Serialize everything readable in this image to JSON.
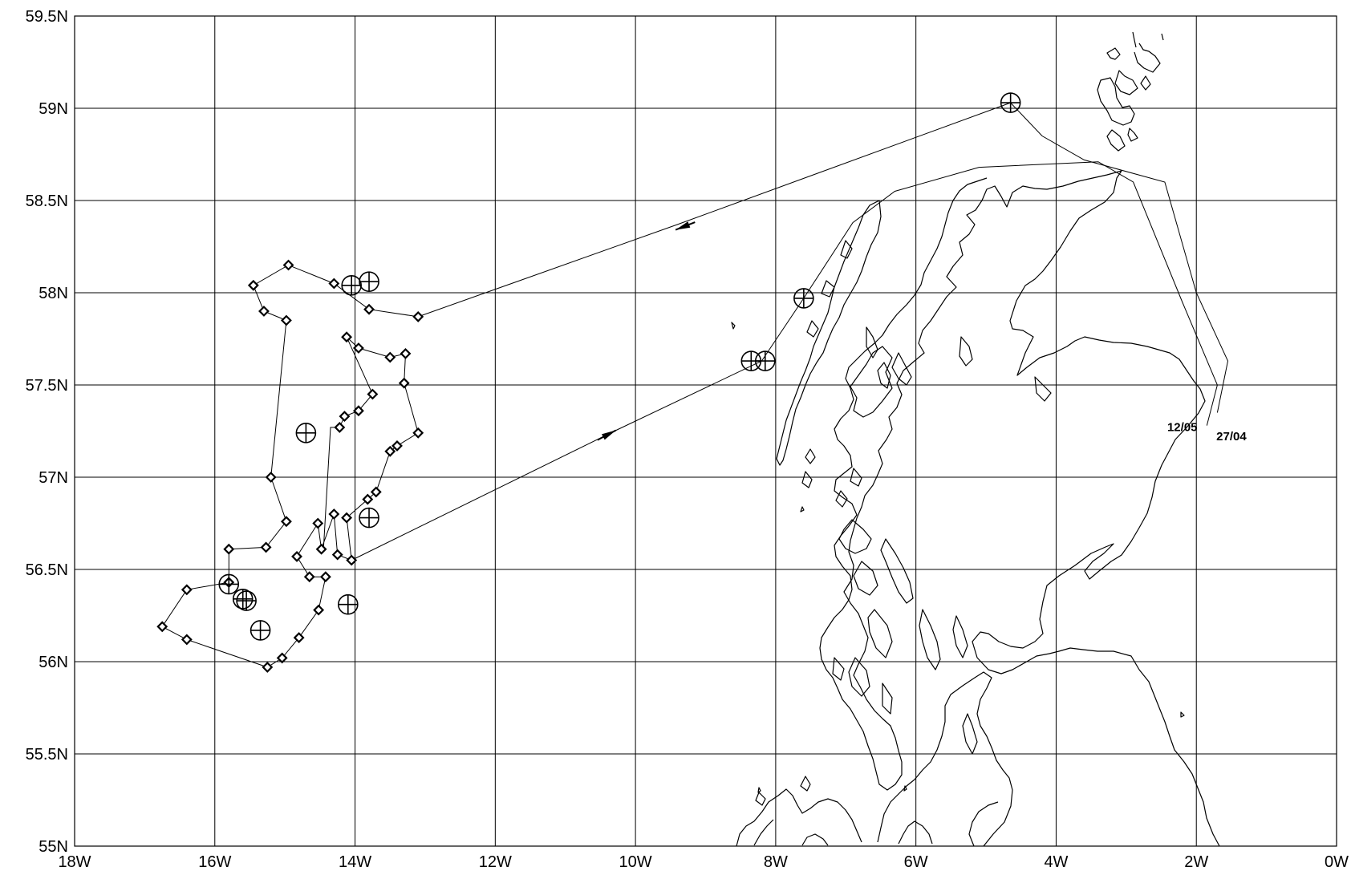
{
  "map": {
    "lon_range": [
      -18,
      0
    ],
    "lat_range": [
      55,
      59.5
    ],
    "x_tick_labels": [
      "18W",
      "16W",
      "14W",
      "12W",
      "10W",
      "8W",
      "6W",
      "4W",
      "2W",
      "0W"
    ],
    "y_tick_labels": [
      "55N",
      "55.5N",
      "56N",
      "56.5N",
      "57N",
      "57.5N",
      "58N",
      "58.5N",
      "59N",
      "59.5N"
    ],
    "annotations": [
      {
        "text": "12/05",
        "lon": -2.2,
        "lat": 57.25
      },
      {
        "text": "27/04",
        "lon": -1.5,
        "lat": 57.2
      }
    ],
    "survey_track": [
      [
        -13.1,
        57.87
      ],
      [
        -13.8,
        57.91
      ],
      [
        -14.3,
        58.05
      ],
      [
        -14.95,
        58.15
      ],
      [
        -15.45,
        58.04
      ],
      [
        -15.3,
        57.9
      ],
      [
        -14.98,
        57.85
      ],
      [
        -15.2,
        57.0
      ],
      [
        -14.98,
        56.76
      ],
      [
        -15.27,
        56.62
      ],
      [
        -15.8,
        56.61
      ],
      [
        -15.8,
        56.43
      ],
      [
        -16.4,
        56.39
      ],
      [
        -16.75,
        56.19
      ],
      [
        -16.4,
        56.12
      ],
      [
        -15.25,
        55.97
      ],
      [
        -15.04,
        56.02
      ],
      [
        -14.8,
        56.13
      ],
      [
        -14.52,
        56.28
      ],
      [
        -14.42,
        56.46
      ],
      [
        -14.65,
        56.46
      ],
      [
        -14.83,
        56.57
      ],
      [
        -14.53,
        56.75
      ],
      [
        -14.48,
        56.61
      ],
      [
        -14.3,
        56.8
      ],
      [
        -14.25,
        56.58
      ],
      [
        -14.05,
        56.55
      ],
      [
        -14.12,
        56.78
      ],
      [
        -13.82,
        56.88
      ],
      [
        -13.7,
        56.92
      ],
      [
        -13.5,
        57.14
      ],
      [
        -13.4,
        57.17
      ],
      [
        -13.1,
        57.24
      ],
      [
        -13.3,
        57.51
      ],
      [
        -13.28,
        57.67
      ],
      [
        -13.5,
        57.65
      ],
      [
        -13.95,
        57.7
      ],
      [
        -14.12,
        57.76
      ],
      [
        -13.75,
        57.45
      ],
      [
        -13.95,
        57.36
      ],
      [
        -14.15,
        57.33
      ],
      [
        -14.22,
        57.27
      ],
      [
        -14.35,
        57.27
      ],
      [
        -14.45,
        56.61
      ]
    ],
    "route_out": [
      [
        -14.05,
        56.55
      ],
      [
        -10.3,
        57.25
      ],
      [
        -8.2,
        57.63
      ]
    ],
    "route_back": [
      [
        -13.1,
        57.87
      ],
      [
        -9.4,
        58.37
      ],
      [
        -4.65,
        59.03
      ]
    ],
    "route_coast_1205": [
      [
        -8.2,
        57.63
      ],
      [
        -7.6,
        57.97
      ],
      [
        -6.9,
        58.38
      ],
      [
        -6.3,
        58.55
      ],
      [
        -5.1,
        58.68
      ],
      [
        -3.4,
        58.71
      ],
      [
        -2.9,
        58.6
      ],
      [
        -2.2,
        57.95
      ],
      [
        -1.7,
        57.5
      ],
      [
        -1.85,
        57.28
      ]
    ],
    "route_coast_2704": [
      [
        -4.65,
        59.03
      ],
      [
        -4.2,
        58.85
      ],
      [
        -3.6,
        58.72
      ],
      [
        -2.45,
        58.6
      ],
      [
        -2.0,
        58.0
      ],
      [
        -1.55,
        57.63
      ],
      [
        -1.7,
        57.35
      ]
    ],
    "survey_stations": [
      [
        -13.1,
        57.87
      ],
      [
        -13.8,
        57.91
      ],
      [
        -14.3,
        58.05
      ],
      [
        -14.95,
        58.15
      ],
      [
        -15.45,
        58.04
      ],
      [
        -15.3,
        57.9
      ],
      [
        -14.98,
        57.85
      ],
      [
        -15.2,
        57.0
      ],
      [
        -14.98,
        56.76
      ],
      [
        -15.27,
        56.62
      ],
      [
        -15.8,
        56.61
      ],
      [
        -15.8,
        56.43
      ],
      [
        -16.4,
        56.39
      ],
      [
        -16.75,
        56.19
      ],
      [
        -16.4,
        56.12
      ],
      [
        -15.25,
        55.97
      ],
      [
        -15.04,
        56.02
      ],
      [
        -14.8,
        56.13
      ],
      [
        -14.52,
        56.28
      ],
      [
        -14.42,
        56.46
      ],
      [
        -14.65,
        56.46
      ],
      [
        -14.83,
        56.57
      ],
      [
        -14.53,
        56.75
      ],
      [
        -14.48,
        56.61
      ],
      [
        -14.3,
        56.8
      ],
      [
        -14.25,
        56.58
      ],
      [
        -14.05,
        56.55
      ],
      [
        -14.12,
        56.78
      ],
      [
        -13.82,
        56.88
      ],
      [
        -13.7,
        56.92
      ],
      [
        -13.5,
        57.14
      ],
      [
        -13.4,
        57.17
      ],
      [
        -13.1,
        57.24
      ],
      [
        -13.3,
        57.51
      ],
      [
        -13.28,
        57.67
      ],
      [
        -13.5,
        57.65
      ],
      [
        -13.95,
        57.7
      ],
      [
        -14.12,
        57.76
      ],
      [
        -13.75,
        57.45
      ],
      [
        -13.95,
        57.36
      ],
      [
        -14.15,
        57.33
      ],
      [
        -14.22,
        57.27
      ]
    ],
    "crossed_circle_markers": [
      [
        -4.65,
        59.03
      ],
      [
        -7.6,
        57.97
      ],
      [
        -8.35,
        57.63
      ],
      [
        -8.15,
        57.63
      ],
      [
        -14.05,
        58.04
      ],
      [
        -13.8,
        58.06
      ],
      [
        -14.7,
        57.24
      ],
      [
        -13.8,
        56.78
      ],
      [
        -15.8,
        56.42
      ],
      [
        -15.6,
        56.34
      ],
      [
        -15.55,
        56.33
      ],
      [
        -15.35,
        56.17
      ],
      [
        -14.1,
        56.31
      ]
    ],
    "arrows": [
      {
        "at": [
          -10.4,
          57.23
        ],
        "toward": [
          -10.3,
          57.25
        ]
      },
      {
        "at": [
          -9.3,
          58.36
        ],
        "toward": [
          -9.5,
          58.33
        ]
      }
    ]
  }
}
